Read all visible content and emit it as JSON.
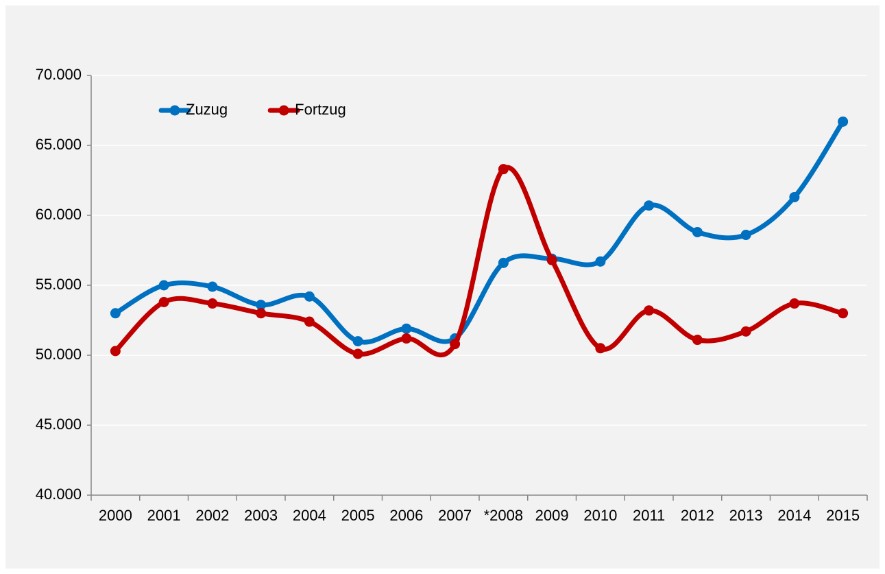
{
  "chart_data": {
    "type": "line",
    "categories": [
      "2000",
      "2001",
      "2002",
      "2003",
      "2004",
      "2005",
      "2006",
      "2007",
      "*2008",
      "2009",
      "2010",
      "2011",
      "2012",
      "2013",
      "2014",
      "2015"
    ],
    "series": [
      {
        "name": "Zuzug",
        "color": "#0070c0",
        "values": [
          53000,
          55000,
          54900,
          53600,
          54200,
          51000,
          51900,
          51200,
          56600,
          56900,
          56700,
          60700,
          58800,
          58600,
          61300,
          66700
        ]
      },
      {
        "name": "Fortzug",
        "color": "#c00000",
        "values": [
          50300,
          53800,
          53700,
          53000,
          52400,
          50100,
          51200,
          50800,
          63300,
          56800,
          50500,
          53200,
          51100,
          51700,
          53700,
          53000
        ]
      }
    ],
    "ylim": [
      40000,
      70000
    ],
    "yticks": [
      {
        "value": 40000,
        "label": "40.000"
      },
      {
        "value": 45000,
        "label": "45.000"
      },
      {
        "value": 50000,
        "label": "50.000"
      },
      {
        "value": 55000,
        "label": "55.000"
      },
      {
        "value": 60000,
        "label": "60.000"
      },
      {
        "value": 65000,
        "label": "65.000"
      },
      {
        "value": 70000,
        "label": "70.000"
      }
    ],
    "grid": true,
    "smooth": true,
    "legend": "upper left"
  }
}
